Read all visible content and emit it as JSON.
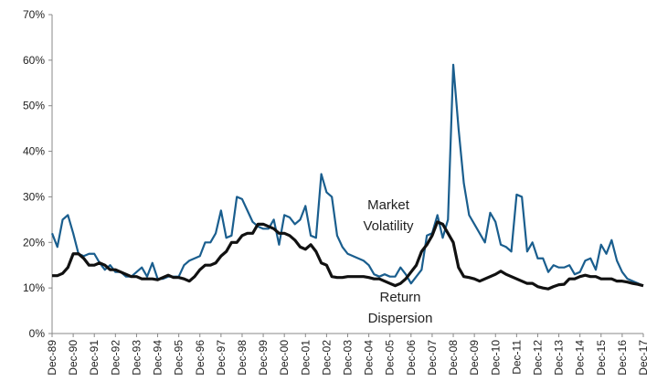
{
  "chart_data": {
    "type": "line",
    "categories": [
      "Dec-89",
      null,
      null,
      null,
      "Dec-90",
      null,
      null,
      null,
      "Dec-91",
      null,
      null,
      null,
      "Dec-92",
      null,
      null,
      null,
      "Dec-93",
      null,
      null,
      null,
      "Dec-94",
      null,
      null,
      null,
      "Dec-95",
      null,
      null,
      null,
      "Dec-96",
      null,
      null,
      null,
      "Dec-97",
      null,
      null,
      null,
      "Dec-98",
      null,
      null,
      null,
      "Dec-99",
      null,
      null,
      null,
      "Dec-00",
      null,
      null,
      null,
      "Dec-01",
      null,
      null,
      null,
      "Dec-02",
      null,
      null,
      null,
      "Dec-03",
      null,
      null,
      null,
      "Dec-04",
      null,
      null,
      null,
      "Dec-05",
      null,
      null,
      null,
      "Dec-06",
      null,
      null,
      null,
      "Dec-07",
      null,
      null,
      null,
      "Dec-08",
      null,
      null,
      null,
      "Dec-09",
      null,
      null,
      null,
      "Dec-10",
      null,
      null,
      null,
      "Dec-11",
      null,
      null,
      null,
      "Dec-12",
      null,
      null,
      null,
      "Dec-13",
      null,
      null,
      null,
      "Dec-14",
      null,
      null,
      null,
      "Dec-15",
      null,
      null,
      null,
      "Dec-16",
      null,
      null,
      null,
      "Dec-17"
    ],
    "series": [
      {
        "color": "#1a5e8e",
        "values": [
          22,
          19,
          25,
          26,
          22,
          17.5,
          17,
          17.5,
          17.5,
          15.5,
          14,
          15,
          13.5,
          13.5,
          12.5,
          12.5,
          13.5,
          14.5,
          12.5,
          15.5,
          12,
          12,
          12.5,
          12.5,
          12.5,
          15,
          16,
          16.5,
          17,
          20,
          20,
          22,
          27,
          21,
          21.5,
          30,
          29.5,
          27,
          24.5,
          23.5,
          23,
          23,
          25,
          19.5,
          26,
          25.5,
          24,
          25,
          28,
          21.5,
          21,
          35,
          31,
          30,
          21.5,
          19,
          17.5,
          17,
          16.5,
          16,
          15,
          13,
          12.5,
          13,
          12.5,
          12.5,
          14.5,
          13,
          11,
          12.5,
          14,
          21.5,
          22,
          26,
          21,
          25,
          59,
          45,
          33,
          26,
          24,
          22,
          20,
          26.5,
          24.5,
          19.5,
          19,
          18,
          30.5,
          30,
          18,
          20,
          16.5,
          16.5,
          13.5,
          15,
          14.5,
          14.5,
          15,
          13,
          13.5,
          16,
          16.5,
          14,
          19.5,
          17.5,
          20.5,
          16,
          13.5,
          12,
          11.5,
          11,
          10.5
        ]
      },
      {
        "color": "#111111",
        "values": [
          12.7,
          12.7,
          13.2,
          14.5,
          17.5,
          17.5,
          16.5,
          15,
          15,
          15.5,
          15,
          14,
          14,
          13.5,
          13,
          12.5,
          12.5,
          12,
          12,
          12,
          11.8,
          12.3,
          12.8,
          12.3,
          12.3,
          12,
          11.5,
          12.5,
          14,
          15,
          15,
          15.5,
          17,
          18,
          20,
          20,
          21.5,
          22,
          22,
          24,
          24,
          23.5,
          23,
          22,
          22,
          21.5,
          20.5,
          19,
          18.5,
          19.5,
          18,
          15.5,
          15,
          12.5,
          12.3,
          12.3,
          12.5,
          12.5,
          12.5,
          12.5,
          12.3,
          12,
          12,
          11.5,
          11,
          10.5,
          11,
          12,
          13.5,
          15,
          18,
          19.5,
          21.5,
          24.5,
          24,
          22,
          20,
          14.5,
          12.5,
          12.3,
          12,
          11.5,
          12,
          12.5,
          13,
          13.7,
          13,
          12.5,
          12,
          11.5,
          11,
          11,
          10.3,
          10,
          9.8,
          10.3,
          10.7,
          10.8,
          12,
          12,
          12.5,
          12.8,
          12.5,
          12.5,
          12,
          12,
          12,
          11.5,
          11.5,
          11.3,
          11,
          10.8,
          10.5
        ]
      }
    ],
    "annotations": [
      "Market",
      "Volatility",
      "Return",
      "Dispersion"
    ],
    "ylim": [
      0,
      70
    ],
    "yticks": [
      {
        "value": 0,
        "label": "0%"
      },
      {
        "value": 10,
        "label": "10%"
      },
      {
        "value": 20,
        "label": "20%"
      },
      {
        "value": 30,
        "label": "30%"
      },
      {
        "value": 40,
        "label": "40%"
      },
      {
        "value": 50,
        "label": "50%"
      },
      {
        "value": 60,
        "label": "60%"
      },
      {
        "value": 70,
        "label": "70%"
      }
    ]
  }
}
